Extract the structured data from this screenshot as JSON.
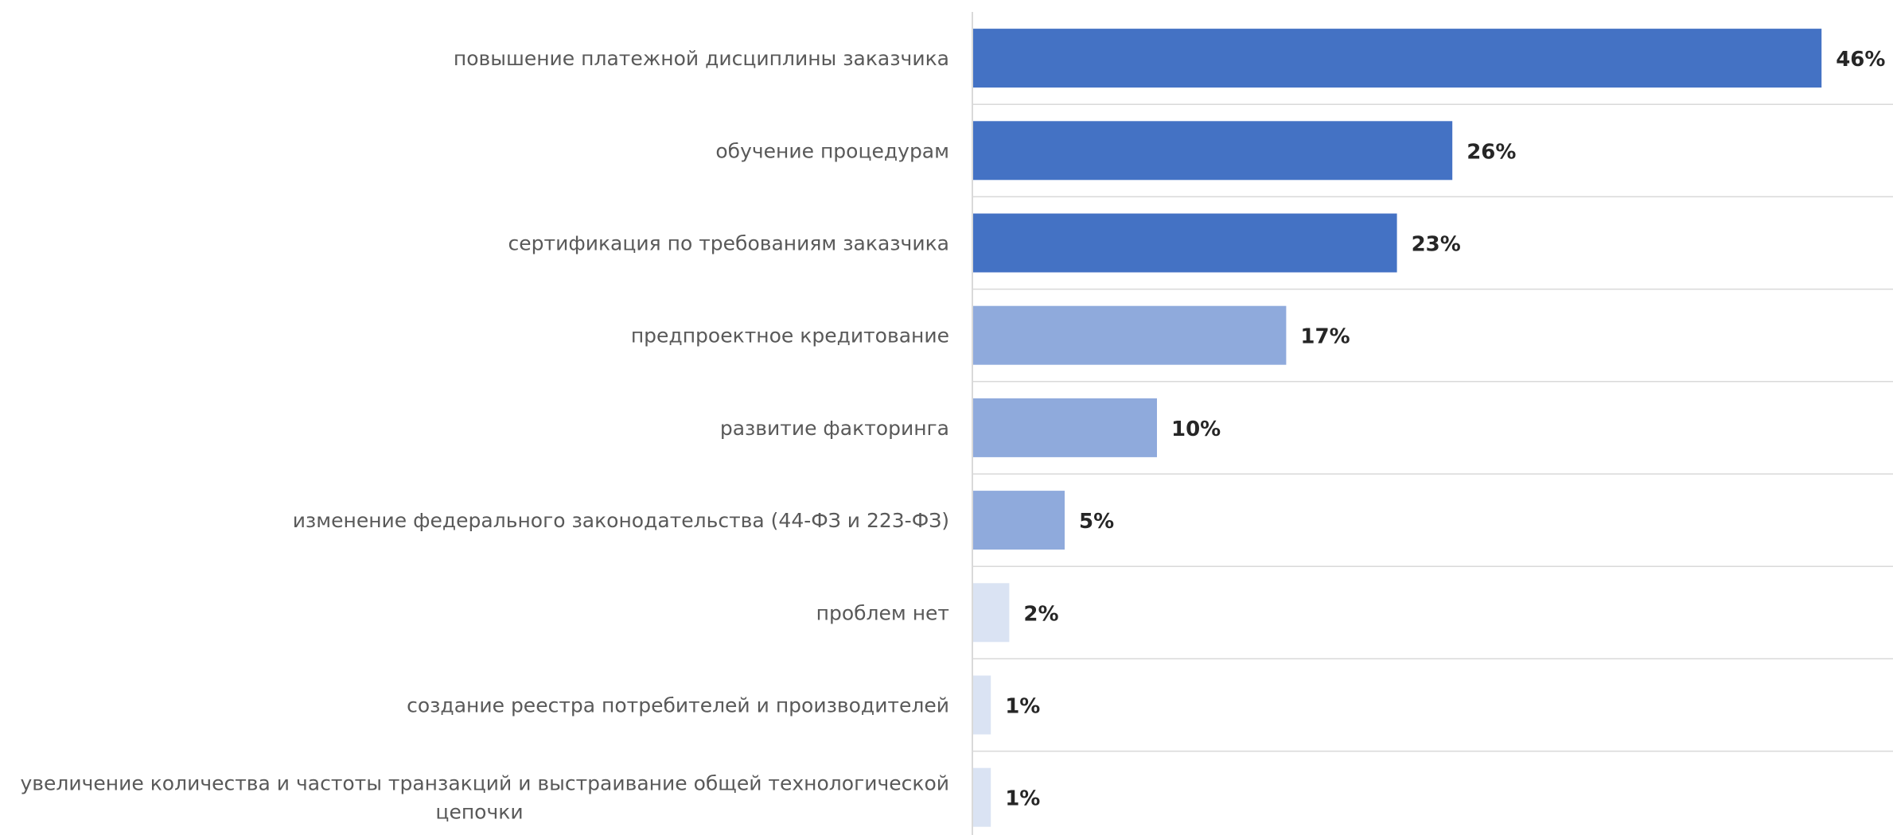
{
  "chart_data": {
    "type": "bar",
    "orientation": "horizontal",
    "title": "",
    "xlabel": "",
    "ylabel": "",
    "value_format": "percent",
    "xlim": [
      0,
      50
    ],
    "grid": true,
    "legend": "none",
    "categories": [
      "повышение платежной дисциплины заказчика",
      "обучение процедурам",
      "сертификация по требованиям заказчика",
      "предпроектное кредитование",
      "развитие факторинга",
      "изменение федерального законодательства (44-ФЗ и 223-ФЗ)",
      "проблем нет",
      "создание реестра потребителей и производителей",
      "увеличение количества и частоты транзакций и выстраивание общей технологической цепочки"
    ],
    "values": [
      46,
      26,
      23,
      17,
      10,
      5,
      2,
      1,
      1
    ],
    "data_labels": [
      "46%",
      "26%",
      "23%",
      "17%",
      "10%",
      "5%",
      "2%",
      "1%",
      "1%"
    ],
    "bar_colors": [
      "#4472c4",
      "#4472c4",
      "#4472c4",
      "#8faadc",
      "#8faadc",
      "#8faadc",
      "#dae3f3",
      "#dae3f3",
      "#dae3f3"
    ]
  }
}
